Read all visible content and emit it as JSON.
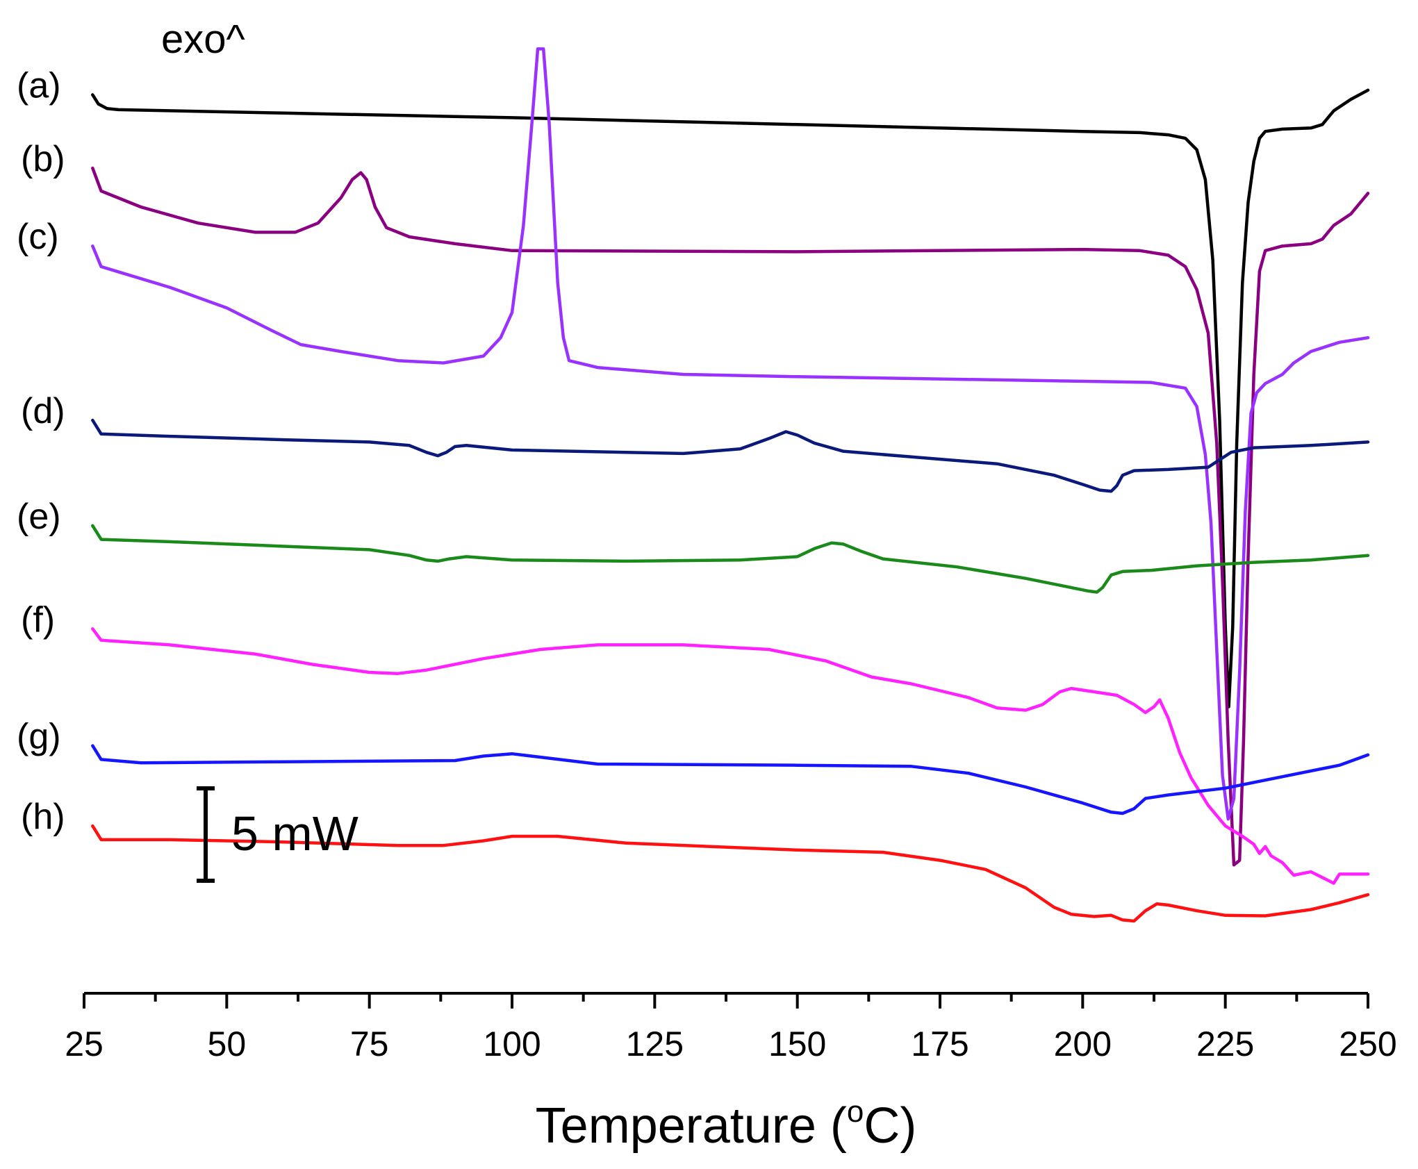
{
  "chart_data": {
    "type": "line",
    "title": "",
    "exo_label": "exo^",
    "xlabel_main": "Temperature (",
    "xlabel_sup": "o",
    "xlabel_end": "C)",
    "xlim": [
      25,
      250
    ],
    "x_ticks": [
      "25",
      "50",
      "75",
      "100",
      "125",
      "150",
      "175",
      "200",
      "225",
      "250"
    ],
    "x_tick_values": [
      25,
      50,
      75,
      100,
      125,
      150,
      175,
      200,
      225,
      250
    ],
    "y_unit": "mW",
    "y_label_note": "curves vertically offset; y values in mW relative scale",
    "scale_bar": {
      "label": "5 mW",
      "value_mW": 5
    },
    "series": [
      {
        "name": "(a)",
        "color": "#000000",
        "points": [
          [
            26.5,
            37.2
          ],
          [
            27.5,
            36.8
          ],
          [
            29,
            36.6
          ],
          [
            31,
            36.55
          ],
          [
            60,
            36.4
          ],
          [
            100,
            36.2
          ],
          [
            150,
            35.9
          ],
          [
            200,
            35.6
          ],
          [
            210,
            35.55
          ],
          [
            215,
            35.45
          ],
          [
            218,
            35.3
          ],
          [
            220,
            34.8
          ],
          [
            221.5,
            33.5
          ],
          [
            222.8,
            30
          ],
          [
            224,
            23
          ],
          [
            225,
            14
          ],
          [
            225.6,
            10.5
          ],
          [
            226.3,
            14
          ],
          [
            227,
            22
          ],
          [
            228,
            29
          ],
          [
            229,
            32.5
          ],
          [
            230,
            34.3
          ],
          [
            231,
            35.3
          ],
          [
            232,
            35.6
          ],
          [
            235,
            35.7
          ],
          [
            240,
            35.75
          ],
          [
            242,
            35.9
          ],
          [
            244,
            36.5
          ],
          [
            247,
            37
          ],
          [
            250,
            37.4
          ]
        ]
      },
      {
        "name": "(b)",
        "color": "#8b0080",
        "points": [
          [
            26.5,
            34
          ],
          [
            28,
            33
          ],
          [
            35,
            32.3
          ],
          [
            45,
            31.6
          ],
          [
            55,
            31.2
          ],
          [
            62,
            31.2
          ],
          [
            66,
            31.6
          ],
          [
            70,
            32.7
          ],
          [
            72,
            33.5
          ],
          [
            73.5,
            33.8
          ],
          [
            74.5,
            33.5
          ],
          [
            76,
            32.3
          ],
          [
            78,
            31.4
          ],
          [
            82,
            31
          ],
          [
            90,
            30.7
          ],
          [
            100,
            30.4
          ],
          [
            150,
            30.35
          ],
          [
            200,
            30.45
          ],
          [
            210,
            30.4
          ],
          [
            215,
            30.2
          ],
          [
            218,
            29.7
          ],
          [
            220,
            28.7
          ],
          [
            222,
            26.8
          ],
          [
            223.5,
            22
          ],
          [
            224.5,
            16
          ],
          [
            225.5,
            9
          ],
          [
            226.5,
            3.6
          ],
          [
            227.5,
            3.8
          ],
          [
            228.2,
            9
          ],
          [
            229,
            17
          ],
          [
            230,
            25
          ],
          [
            231,
            29.5
          ],
          [
            232,
            30.4
          ],
          [
            235,
            30.6
          ],
          [
            240,
            30.7
          ],
          [
            242,
            30.9
          ],
          [
            244,
            31.5
          ],
          [
            247,
            32
          ],
          [
            250,
            32.9
          ]
        ]
      },
      {
        "name": "(c)",
        "color": "#9932ff",
        "points": [
          [
            26.5,
            30.6
          ],
          [
            28,
            29.7
          ],
          [
            32,
            29.4
          ],
          [
            40,
            28.8
          ],
          [
            50,
            27.9
          ],
          [
            58,
            26.9
          ],
          [
            63,
            26.3
          ],
          [
            70,
            26.0
          ],
          [
            80,
            25.6
          ],
          [
            88,
            25.5
          ],
          [
            95,
            25.8
          ],
          [
            98,
            26.6
          ],
          [
            100,
            27.7
          ],
          [
            102,
            31.5
          ],
          [
            103.5,
            36
          ],
          [
            104.5,
            39.2
          ],
          [
            105.5,
            39.2
          ],
          [
            106.5,
            36
          ],
          [
            108,
            29
          ],
          [
            109,
            26.6
          ],
          [
            110,
            25.6
          ],
          [
            115,
            25.3
          ],
          [
            130,
            25.0
          ],
          [
            150,
            24.9
          ],
          [
            200,
            24.7
          ],
          [
            212,
            24.65
          ],
          [
            218,
            24.4
          ],
          [
            220,
            23.6
          ],
          [
            221.5,
            21.5
          ],
          [
            222.5,
            18.5
          ],
          [
            223.5,
            13
          ],
          [
            224.5,
            7.5
          ],
          [
            225.5,
            5.6
          ],
          [
            226.5,
            6.5
          ],
          [
            227.5,
            12
          ],
          [
            228.5,
            19
          ],
          [
            229.5,
            23.3
          ],
          [
            230.5,
            24.2
          ],
          [
            232,
            24.6
          ],
          [
            235,
            25
          ],
          [
            237,
            25.5
          ],
          [
            240,
            26
          ],
          [
            245,
            26.4
          ],
          [
            250,
            26.6
          ]
        ]
      },
      {
        "name": "(d)",
        "color": "#0b1a7a",
        "points": [
          [
            26.5,
            23.0
          ],
          [
            28,
            22.4
          ],
          [
            40,
            22.3
          ],
          [
            60,
            22.15
          ],
          [
            75,
            22.05
          ],
          [
            82,
            21.9
          ],
          [
            85,
            21.6
          ],
          [
            87,
            21.45
          ],
          [
            88.5,
            21.6
          ],
          [
            90,
            21.85
          ],
          [
            92,
            21.9
          ],
          [
            100,
            21.7
          ],
          [
            120,
            21.6
          ],
          [
            130,
            21.55
          ],
          [
            140,
            21.75
          ],
          [
            145,
            22.2
          ],
          [
            148,
            22.5
          ],
          [
            150,
            22.35
          ],
          [
            153,
            22.0
          ],
          [
            158,
            21.65
          ],
          [
            170,
            21.4
          ],
          [
            185,
            21.1
          ],
          [
            195,
            20.6
          ],
          [
            200,
            20.2
          ],
          [
            203,
            19.95
          ],
          [
            205,
            19.9
          ],
          [
            206,
            20.15
          ],
          [
            207,
            20.6
          ],
          [
            209,
            20.8
          ],
          [
            215,
            20.85
          ],
          [
            222,
            20.95
          ],
          [
            226,
            21.6
          ],
          [
            230,
            21.8
          ],
          [
            240,
            21.9
          ],
          [
            250,
            22.05
          ]
        ]
      },
      {
        "name": "(e)",
        "color": "#1a8a1a",
        "points": [
          [
            26.5,
            18.4
          ],
          [
            28,
            17.8
          ],
          [
            40,
            17.7
          ],
          [
            60,
            17.5
          ],
          [
            75,
            17.35
          ],
          [
            82,
            17.1
          ],
          [
            85,
            16.9
          ],
          [
            87,
            16.85
          ],
          [
            89,
            16.95
          ],
          [
            92,
            17.05
          ],
          [
            100,
            16.9
          ],
          [
            120,
            16.85
          ],
          [
            140,
            16.9
          ],
          [
            150,
            17.05
          ],
          [
            153,
            17.4
          ],
          [
            156,
            17.65
          ],
          [
            158,
            17.6
          ],
          [
            161,
            17.3
          ],
          [
            165,
            16.95
          ],
          [
            178,
            16.6
          ],
          [
            190,
            16.1
          ],
          [
            198,
            15.7
          ],
          [
            201,
            15.55
          ],
          [
            202.5,
            15.5
          ],
          [
            203.5,
            15.7
          ],
          [
            205,
            16.25
          ],
          [
            207,
            16.4
          ],
          [
            212,
            16.45
          ],
          [
            220,
            16.65
          ],
          [
            230,
            16.8
          ],
          [
            240,
            16.9
          ],
          [
            250,
            17.1
          ]
        ]
      },
      {
        "name": "(f)",
        "color": "#ff22ff",
        "points": [
          [
            26.5,
            13.9
          ],
          [
            28,
            13.4
          ],
          [
            40,
            13.2
          ],
          [
            55,
            12.8
          ],
          [
            65,
            12.35
          ],
          [
            75,
            12.0
          ],
          [
            80,
            11.95
          ],
          [
            85,
            12.1
          ],
          [
            95,
            12.6
          ],
          [
            105,
            13.0
          ],
          [
            115,
            13.2
          ],
          [
            130,
            13.2
          ],
          [
            145,
            13.0
          ],
          [
            155,
            12.5
          ],
          [
            163,
            11.8
          ],
          [
            170,
            11.5
          ],
          [
            180,
            10.9
          ],
          [
            185,
            10.45
          ],
          [
            190,
            10.35
          ],
          [
            193,
            10.6
          ],
          [
            196,
            11.15
          ],
          [
            198,
            11.3
          ],
          [
            202,
            11.15
          ],
          [
            206,
            11.0
          ],
          [
            209,
            10.6
          ],
          [
            211,
            10.25
          ],
          [
            212.5,
            10.5
          ],
          [
            213.5,
            10.8
          ],
          [
            215,
            10.0
          ],
          [
            217,
            8.5
          ],
          [
            219,
            7.4
          ],
          [
            222,
            6.2
          ],
          [
            225,
            5.3
          ],
          [
            228,
            4.85
          ],
          [
            230,
            4.5
          ],
          [
            231,
            4.1
          ],
          [
            232,
            4.4
          ],
          [
            233,
            4.0
          ],
          [
            235,
            3.7
          ],
          [
            237,
            3.15
          ],
          [
            240,
            3.3
          ],
          [
            242,
            3.05
          ],
          [
            244,
            2.8
          ],
          [
            245,
            3.2
          ],
          [
            250,
            3.2
          ]
        ]
      },
      {
        "name": "(g)",
        "color": "#1515ff",
        "points": [
          [
            26.5,
            8.8
          ],
          [
            28,
            8.2
          ],
          [
            35,
            8.05
          ],
          [
            60,
            8.1
          ],
          [
            90,
            8.15
          ],
          [
            95,
            8.35
          ],
          [
            100,
            8.45
          ],
          [
            105,
            8.3
          ],
          [
            115,
            8.0
          ],
          [
            150,
            7.95
          ],
          [
            170,
            7.9
          ],
          [
            180,
            7.6
          ],
          [
            190,
            7.0
          ],
          [
            200,
            6.3
          ],
          [
            205,
            5.9
          ],
          [
            207,
            5.85
          ],
          [
            209,
            6.05
          ],
          [
            211,
            6.5
          ],
          [
            215,
            6.65
          ],
          [
            225,
            6.95
          ],
          [
            235,
            7.45
          ],
          [
            245,
            7.95
          ],
          [
            250,
            8.4
          ]
        ]
      },
      {
        "name": "(h)",
        "color": "#ff1111",
        "points": [
          [
            26.5,
            5.3
          ],
          [
            28,
            4.7
          ],
          [
            40,
            4.7
          ],
          [
            60,
            4.6
          ],
          [
            80,
            4.45
          ],
          [
            88,
            4.45
          ],
          [
            95,
            4.65
          ],
          [
            100,
            4.85
          ],
          [
            108,
            4.85
          ],
          [
            120,
            4.55
          ],
          [
            150,
            4.25
          ],
          [
            165,
            4.15
          ],
          [
            175,
            3.8
          ],
          [
            183,
            3.4
          ],
          [
            190,
            2.6
          ],
          [
            195,
            1.75
          ],
          [
            198,
            1.45
          ],
          [
            202,
            1.35
          ],
          [
            205,
            1.4
          ],
          [
            207,
            1.2
          ],
          [
            209,
            1.15
          ],
          [
            211,
            1.6
          ],
          [
            213,
            1.9
          ],
          [
            215,
            1.85
          ],
          [
            220,
            1.6
          ],
          [
            225,
            1.4
          ],
          [
            232,
            1.38
          ],
          [
            240,
            1.65
          ],
          [
            245,
            1.95
          ],
          [
            250,
            2.3
          ]
        ]
      }
    ]
  }
}
